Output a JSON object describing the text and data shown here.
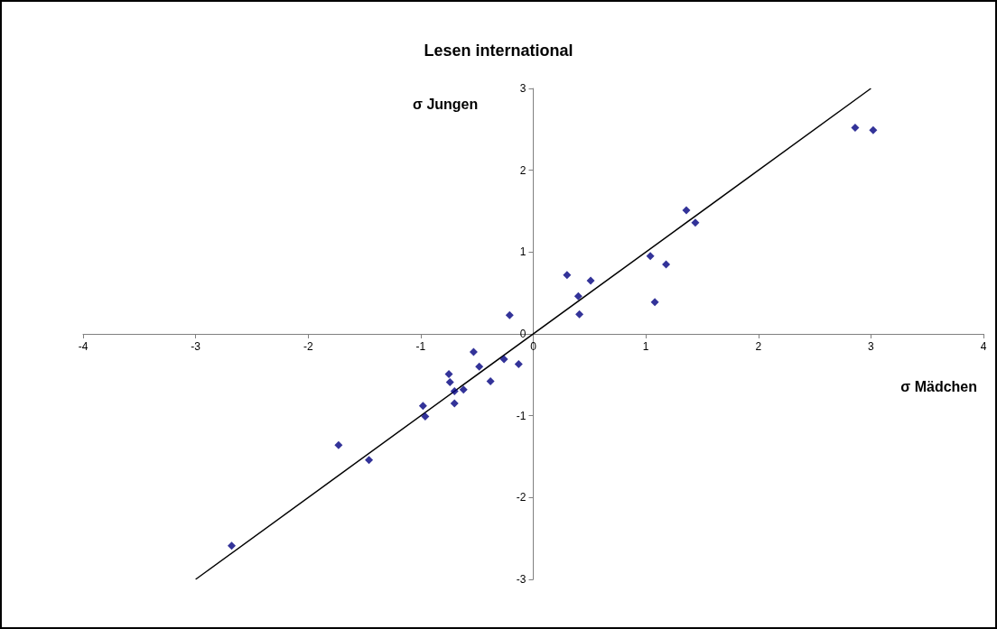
{
  "chart_data": {
    "type": "scatter",
    "title": "Lesen international",
    "xlabel": "σ Mädchen",
    "ylabel": "σ Jungen",
    "x": [
      -2.68,
      -1.73,
      -1.46,
      -0.98,
      -0.96,
      -0.75,
      -0.74,
      -0.7,
      -0.7,
      -0.62,
      -0.53,
      -0.48,
      -0.38,
      -0.26,
      -0.21,
      -0.13,
      0.3,
      0.4,
      0.41,
      0.51,
      1.04,
      1.18,
      1.08,
      1.36,
      1.44,
      2.86,
      3.02
    ],
    "series": [
      {
        "color": "#000080",
        "marker": "diamond",
        "values": [
          -2.59,
          -1.36,
          -1.54,
          -0.88,
          -1.01,
          -0.49,
          -0.59,
          -0.7,
          -0.85,
          -0.68,
          -0.22,
          -0.4,
          -0.58,
          -0.31,
          0.23,
          -0.37,
          0.72,
          0.46,
          0.24,
          0.65,
          0.95,
          0.85,
          0.39,
          1.51,
          1.36,
          2.52,
          2.49
        ]
      },
      {
        "type": "line",
        "color": "#000000",
        "marker": "none",
        "line_style": "solid",
        "x": [
          -3,
          3
        ],
        "values": [
          -3,
          3
        ]
      }
    ],
    "xlim": [
      -4,
      4
    ],
    "xticks": [
      -4,
      -3,
      -2,
      -1,
      0,
      1,
      2,
      3,
      4
    ],
    "ylim": [
      -3,
      3
    ],
    "yticks": [
      -3,
      -2,
      -1,
      0,
      1,
      2,
      3
    ],
    "grid": false
  }
}
